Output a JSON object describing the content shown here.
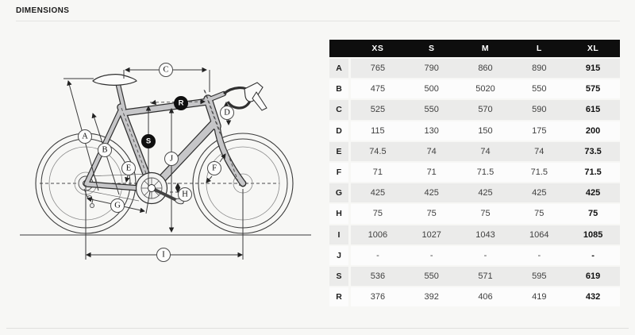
{
  "page": {
    "title": "DIMENSIONS"
  },
  "colors": {
    "page_bg": "#f7f7f5",
    "table_header_bg": "#0e0e0e",
    "table_header_text": "#ffffff",
    "row_stripe": "#ebebea",
    "row_base": "#fcfcfc",
    "callout_dark_bg": "#0f0f0f"
  },
  "diagram": {
    "description": "bike-geometry-diagram",
    "callouts": [
      {
        "letter": "A",
        "style": "outline"
      },
      {
        "letter": "B",
        "style": "outline"
      },
      {
        "letter": "C",
        "style": "outline"
      },
      {
        "letter": "D",
        "style": "outline"
      },
      {
        "letter": "E",
        "style": "outline"
      },
      {
        "letter": "F",
        "style": "outline"
      },
      {
        "letter": "G",
        "style": "outline"
      },
      {
        "letter": "H",
        "style": "outline"
      },
      {
        "letter": "I",
        "style": "outline"
      },
      {
        "letter": "J",
        "style": "outline"
      },
      {
        "letter": "S",
        "style": "filled"
      },
      {
        "letter": "R",
        "style": "filled"
      }
    ]
  },
  "table": {
    "size_headers": [
      "XS",
      "S",
      "M",
      "L",
      "XL"
    ],
    "rows": [
      {
        "label": "A",
        "values": [
          "765",
          "790",
          "860",
          "890",
          "915"
        ]
      },
      {
        "label": "B",
        "values": [
          "475",
          "500",
          "5020",
          "550",
          "575"
        ]
      },
      {
        "label": "C",
        "values": [
          "525",
          "550",
          "570",
          "590",
          "615"
        ]
      },
      {
        "label": "D",
        "values": [
          "115",
          "130",
          "150",
          "175",
          "200"
        ]
      },
      {
        "label": "E",
        "values": [
          "74.5",
          "74",
          "74",
          "74",
          "73.5"
        ]
      },
      {
        "label": "F",
        "values": [
          "71",
          "71",
          "71.5",
          "71.5",
          "71.5"
        ]
      },
      {
        "label": "G",
        "values": [
          "425",
          "425",
          "425",
          "425",
          "425"
        ]
      },
      {
        "label": "H",
        "values": [
          "75",
          "75",
          "75",
          "75",
          "75"
        ]
      },
      {
        "label": "I",
        "values": [
          "1006",
          "1027",
          "1043",
          "1064",
          "1085"
        ]
      },
      {
        "label": "J",
        "values": [
          "-",
          "-",
          "-",
          "-",
          "-"
        ]
      },
      {
        "label": "S",
        "values": [
          "536",
          "550",
          "571",
          "595",
          "619"
        ]
      },
      {
        "label": "R",
        "values": [
          "376",
          "392",
          "406",
          "419",
          "432"
        ]
      }
    ]
  }
}
